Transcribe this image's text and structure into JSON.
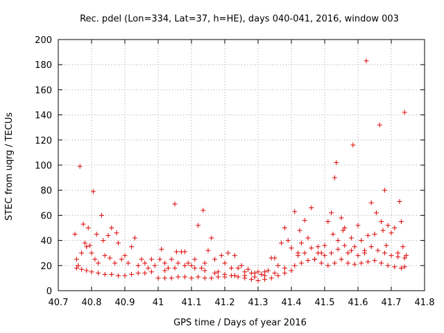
{
  "chart_data": {
    "type": "scatter",
    "title": "Rec. pdel (Lon=334, Lat=37, h=HE), days 040-041, 2016, window 003",
    "xlabel": "GPS time / Days of year 2016",
    "ylabel": "STEC from uqrg / TECUs",
    "xlim": [
      40.7,
      41.8
    ],
    "ylim": [
      0,
      200
    ],
    "xticks": [
      "40.7",
      "40.8",
      "40.9",
      "41",
      "41.1",
      "41.2",
      "41.3",
      "41.4",
      "41.5",
      "41.6",
      "41.7",
      "41.8"
    ],
    "yticks": [
      "0",
      "20",
      "40",
      "60",
      "80",
      "100",
      "120",
      "140",
      "160",
      "180",
      "200"
    ],
    "grid": true,
    "marker": "+",
    "color": "#dd0000",
    "points": [
      [
        40.75,
        45
      ],
      [
        40.755,
        25
      ],
      [
        40.76,
        20
      ],
      [
        40.765,
        99
      ],
      [
        40.77,
        30
      ],
      [
        40.775,
        53
      ],
      [
        40.78,
        38
      ],
      [
        40.785,
        35
      ],
      [
        40.79,
        50
      ],
      [
        40.795,
        36
      ],
      [
        40.8,
        30
      ],
      [
        40.805,
        79
      ],
      [
        40.81,
        25
      ],
      [
        40.815,
        45
      ],
      [
        40.82,
        22
      ],
      [
        40.83,
        60
      ],
      [
        40.835,
        40
      ],
      [
        40.84,
        28
      ],
      [
        40.85,
        44
      ],
      [
        40.855,
        26
      ],
      [
        40.86,
        50
      ],
      [
        40.87,
        22
      ],
      [
        40.875,
        46
      ],
      [
        40.88,
        38
      ],
      [
        40.89,
        25
      ],
      [
        40.9,
        28
      ],
      [
        40.91,
        22
      ],
      [
        40.92,
        35
      ],
      [
        40.93,
        42
      ],
      [
        40.94,
        20
      ],
      [
        40.95,
        25
      ],
      [
        40.96,
        22
      ],
      [
        40.97,
        18
      ],
      [
        40.98,
        25
      ],
      [
        40.99,
        20
      ],
      [
        40.755,
        18
      ],
      [
        40.77,
        17
      ],
      [
        40.785,
        16
      ],
      [
        40.8,
        15
      ],
      [
        40.82,
        14
      ],
      [
        40.84,
        13
      ],
      [
        40.86,
        13
      ],
      [
        40.88,
        12
      ],
      [
        40.9,
        12
      ],
      [
        40.92,
        13
      ],
      [
        40.94,
        14
      ],
      [
        40.96,
        14
      ],
      [
        40.98,
        15
      ],
      [
        41.005,
        25
      ],
      [
        41.01,
        33
      ],
      [
        41.02,
        22
      ],
      [
        41.03,
        18
      ],
      [
        41.04,
        25
      ],
      [
        41.05,
        69
      ],
      [
        41.055,
        31
      ],
      [
        41.06,
        22
      ],
      [
        41.07,
        31
      ],
      [
        41.08,
        31
      ],
      [
        41.09,
        22
      ],
      [
        41.1,
        20
      ],
      [
        41.11,
        25
      ],
      [
        41.12,
        52
      ],
      [
        41.13,
        18
      ],
      [
        41.135,
        64
      ],
      [
        41.14,
        22
      ],
      [
        41.15,
        32
      ],
      [
        41.16,
        42
      ],
      [
        41.17,
        25
      ],
      [
        41.18,
        15
      ],
      [
        41.19,
        28
      ],
      [
        41.2,
        22
      ],
      [
        41.21,
        30
      ],
      [
        41.22,
        18
      ],
      [
        41.23,
        28
      ],
      [
        41.24,
        18
      ],
      [
        41.25,
        20
      ],
      [
        41.26,
        15
      ],
      [
        41.27,
        17
      ],
      [
        41.28,
        14
      ],
      [
        41.29,
        14
      ],
      [
        41.3,
        15
      ],
      [
        41.31,
        13
      ],
      [
        41.32,
        15
      ],
      [
        41.33,
        16
      ],
      [
        41.34,
        26
      ],
      [
        41.35,
        26
      ],
      [
        41.36,
        20
      ],
      [
        41.37,
        38
      ],
      [
        41.38,
        50
      ],
      [
        41.39,
        40
      ],
      [
        41.4,
        34
      ],
      [
        41.0,
        10
      ],
      [
        41.02,
        10
      ],
      [
        41.04,
        10
      ],
      [
        41.06,
        11
      ],
      [
        41.08,
        11
      ],
      [
        41.1,
        10
      ],
      [
        41.12,
        11
      ],
      [
        41.14,
        10
      ],
      [
        41.16,
        10
      ],
      [
        41.18,
        11
      ],
      [
        41.2,
        11
      ],
      [
        41.22,
        12
      ],
      [
        41.24,
        11
      ],
      [
        41.26,
        10
      ],
      [
        41.28,
        9
      ],
      [
        41.3,
        8
      ],
      [
        41.32,
        9
      ],
      [
        41.34,
        10
      ],
      [
        41.36,
        12
      ],
      [
        41.38,
        14
      ],
      [
        41.4,
        16
      ],
      [
        41.02,
        16
      ],
      [
        41.05,
        18
      ],
      [
        41.08,
        20
      ],
      [
        41.11,
        18
      ],
      [
        41.14,
        16
      ],
      [
        41.17,
        14
      ],
      [
        41.2,
        13
      ],
      [
        41.23,
        12
      ],
      [
        41.26,
        12
      ],
      [
        41.29,
        11
      ],
      [
        41.32,
        12
      ],
      [
        41.35,
        14
      ],
      [
        41.38,
        18
      ],
      [
        41.41,
        63
      ],
      [
        41.42,
        30
      ],
      [
        41.425,
        48
      ],
      [
        41.43,
        38
      ],
      [
        41.44,
        56
      ],
      [
        41.45,
        42
      ],
      [
        41.46,
        66
      ],
      [
        41.47,
        25
      ],
      [
        41.48,
        35
      ],
      [
        41.49,
        30
      ],
      [
        41.5,
        36
      ],
      [
        41.51,
        55
      ],
      [
        41.52,
        62
      ],
      [
        41.525,
        45
      ],
      [
        41.53,
        90
      ],
      [
        41.535,
        102
      ],
      [
        41.54,
        40
      ],
      [
        41.55,
        58
      ],
      [
        41.555,
        48
      ],
      [
        41.56,
        50
      ],
      [
        41.57,
        30
      ],
      [
        41.58,
        42
      ],
      [
        41.585,
        116
      ],
      [
        41.59,
        35
      ],
      [
        41.6,
        52
      ],
      [
        41.61,
        40
      ],
      [
        41.62,
        32
      ],
      [
        41.625,
        183
      ],
      [
        41.63,
        44
      ],
      [
        41.64,
        70
      ],
      [
        41.65,
        45
      ],
      [
        41.655,
        62
      ],
      [
        41.665,
        132
      ],
      [
        41.67,
        55
      ],
      [
        41.675,
        48
      ],
      [
        41.68,
        80
      ],
      [
        41.685,
        36
      ],
      [
        41.69,
        52
      ],
      [
        41.7,
        46
      ],
      [
        41.71,
        50
      ],
      [
        41.72,
        30
      ],
      [
        41.725,
        71
      ],
      [
        41.73,
        55
      ],
      [
        41.735,
        35
      ],
      [
        41.74,
        142
      ],
      [
        41.745,
        28
      ],
      [
        41.41,
        20
      ],
      [
        41.43,
        22
      ],
      [
        41.45,
        24
      ],
      [
        41.47,
        25
      ],
      [
        41.49,
        22
      ],
      [
        41.51,
        20
      ],
      [
        41.53,
        22
      ],
      [
        41.55,
        25
      ],
      [
        41.57,
        22
      ],
      [
        41.59,
        21
      ],
      [
        41.61,
        22
      ],
      [
        41.63,
        23
      ],
      [
        41.65,
        24
      ],
      [
        41.67,
        22
      ],
      [
        41.69,
        20
      ],
      [
        41.71,
        19
      ],
      [
        41.73,
        18
      ],
      [
        41.74,
        19
      ],
      [
        41.42,
        28
      ],
      [
        41.44,
        30
      ],
      [
        41.46,
        34
      ],
      [
        41.48,
        30
      ],
      [
        41.5,
        28
      ],
      [
        41.52,
        30
      ],
      [
        41.54,
        33
      ],
      [
        41.56,
        36
      ],
      [
        41.58,
        32
      ],
      [
        41.6,
        28
      ],
      [
        41.62,
        30
      ],
      [
        41.64,
        35
      ],
      [
        41.66,
        32
      ],
      [
        41.68,
        30
      ],
      [
        41.7,
        28
      ],
      [
        41.72,
        27
      ],
      [
        41.74,
        26
      ]
    ]
  }
}
